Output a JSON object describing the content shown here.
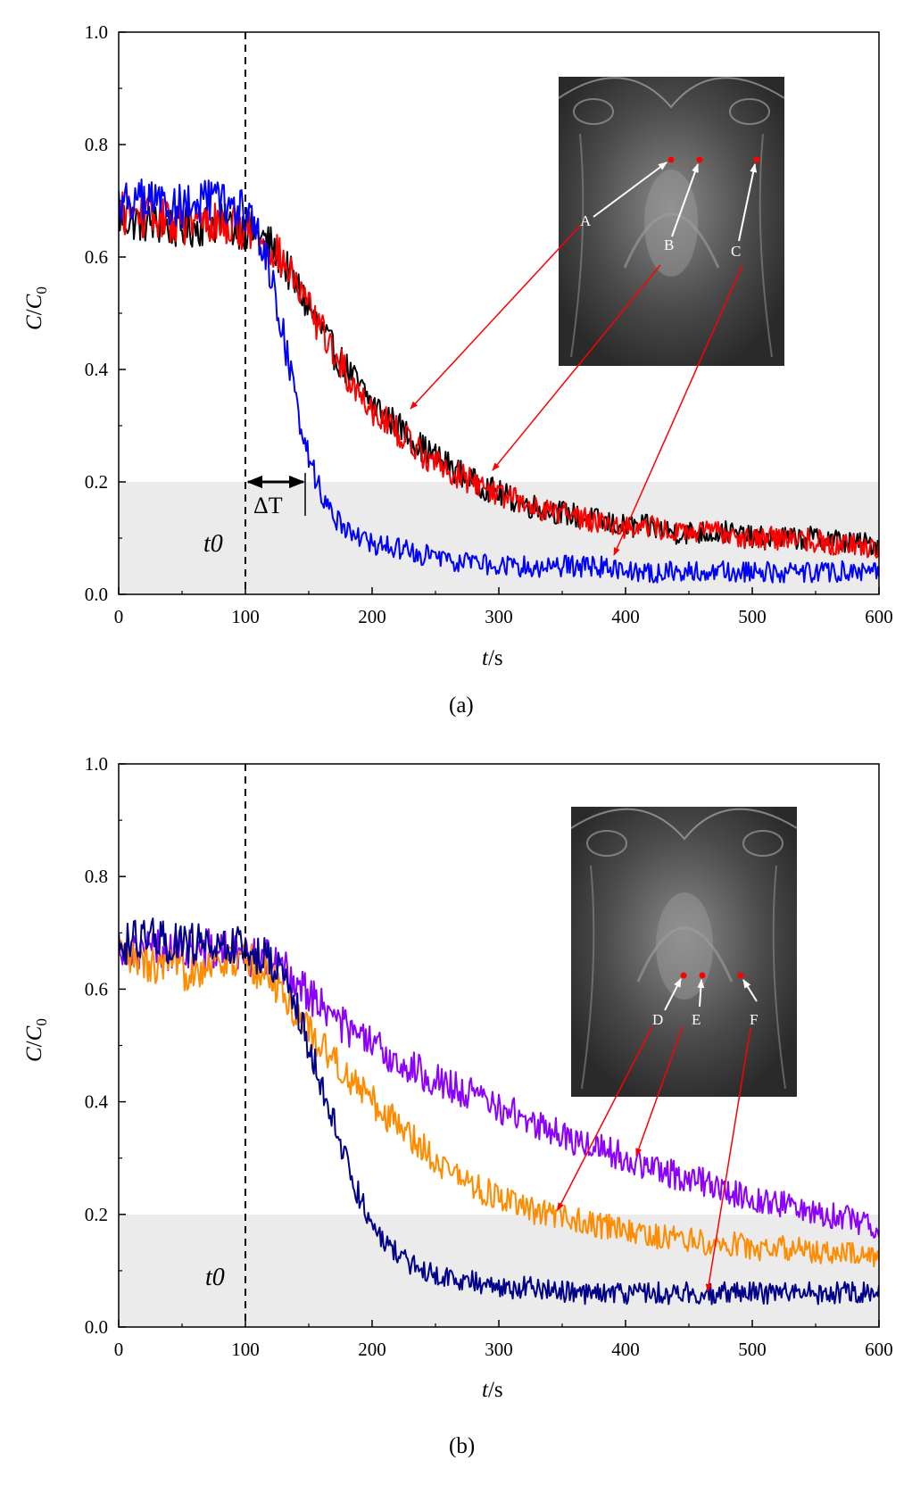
{
  "chart_data": [
    {
      "panel": "(a)",
      "type": "line",
      "xlabel": "t/s",
      "ylabel": "C/C0",
      "xlim": [
        0,
        600
      ],
      "ylim": [
        0,
        1.0
      ],
      "x_ticks": [
        "0",
        "100",
        "200",
        "300",
        "400",
        "500",
        "600"
      ],
      "y_ticks": [
        "0.0",
        "0.2",
        "0.4",
        "0.6",
        "0.8",
        "1.0"
      ],
      "shaded_band": [
        0,
        0.2
      ],
      "vline_x": 100,
      "annotations": {
        "t0": "t0",
        "delta_t": "ΔT"
      },
      "inset_labels": [
        "A",
        "B",
        "C"
      ],
      "series": [
        {
          "color": "#000000",
          "x": [
            0,
            25,
            50,
            75,
            100,
            110,
            120,
            130,
            140,
            150,
            160,
            170,
            180,
            190,
            200,
            220,
            240,
            260,
            280,
            300,
            320,
            340,
            360,
            380,
            400,
            420,
            440,
            460,
            480,
            500,
            520,
            540,
            560,
            580,
            600
          ],
          "values": [
            0.67,
            0.66,
            0.65,
            0.66,
            0.65,
            0.64,
            0.62,
            0.59,
            0.55,
            0.51,
            0.47,
            0.43,
            0.4,
            0.37,
            0.34,
            0.3,
            0.26,
            0.23,
            0.2,
            0.18,
            0.16,
            0.15,
            0.14,
            0.13,
            0.12,
            0.12,
            0.11,
            0.11,
            0.11,
            0.1,
            0.1,
            0.1,
            0.1,
            0.09,
            0.09
          ]
        },
        {
          "color": "#ff0000",
          "x": [
            0,
            25,
            50,
            75,
            100,
            110,
            120,
            130,
            140,
            150,
            160,
            170,
            180,
            190,
            200,
            220,
            240,
            260,
            280,
            300,
            320,
            340,
            360,
            380,
            400,
            420,
            440,
            460,
            480,
            500,
            520,
            540,
            560,
            580,
            600
          ],
          "values": [
            0.68,
            0.67,
            0.66,
            0.66,
            0.65,
            0.64,
            0.62,
            0.59,
            0.55,
            0.51,
            0.47,
            0.43,
            0.39,
            0.36,
            0.33,
            0.29,
            0.25,
            0.22,
            0.2,
            0.18,
            0.16,
            0.15,
            0.14,
            0.13,
            0.12,
            0.12,
            0.11,
            0.11,
            0.11,
            0.1,
            0.1,
            0.1,
            0.09,
            0.09,
            0.08
          ]
        },
        {
          "color": "#0000ff",
          "x": [
            0,
            25,
            50,
            75,
            100,
            110,
            120,
            125,
            130,
            135,
            140,
            145,
            150,
            155,
            160,
            170,
            180,
            190,
            200,
            220,
            240,
            260,
            280,
            300,
            320,
            340,
            360,
            380,
            400,
            420,
            440,
            460,
            480,
            500,
            520,
            540,
            560,
            580,
            600
          ],
          "values": [
            0.7,
            0.7,
            0.69,
            0.7,
            0.68,
            0.64,
            0.57,
            0.52,
            0.46,
            0.4,
            0.34,
            0.29,
            0.25,
            0.21,
            0.18,
            0.14,
            0.12,
            0.1,
            0.09,
            0.08,
            0.07,
            0.06,
            0.06,
            0.05,
            0.05,
            0.05,
            0.05,
            0.05,
            0.04,
            0.04,
            0.04,
            0.04,
            0.04,
            0.04,
            0.04,
            0.04,
            0.04,
            0.04,
            0.04
          ]
        }
      ]
    },
    {
      "panel": "(b)",
      "type": "line",
      "xlabel": "t/s",
      "ylabel": "C/C0",
      "xlim": [
        0,
        600
      ],
      "ylim": [
        0,
        1.0
      ],
      "x_ticks": [
        "0",
        "100",
        "200",
        "300",
        "400",
        "500",
        "600"
      ],
      "y_ticks": [
        "0.0",
        "0.2",
        "0.4",
        "0.6",
        "0.8",
        "1.0"
      ],
      "shaded_band": [
        0,
        0.2
      ],
      "vline_x": 100,
      "annotations": {
        "t0": "t0"
      },
      "inset_labels": [
        "D",
        "E",
        "F"
      ],
      "series": [
        {
          "color": "#8b00ff",
          "x": [
            0,
            25,
            50,
            75,
            100,
            120,
            140,
            160,
            180,
            200,
            220,
            240,
            260,
            280,
            300,
            320,
            340,
            360,
            380,
            400,
            420,
            440,
            460,
            480,
            500,
            520,
            540,
            560,
            580,
            600
          ],
          "values": [
            0.68,
            0.67,
            0.67,
            0.67,
            0.66,
            0.65,
            0.62,
            0.57,
            0.53,
            0.5,
            0.47,
            0.45,
            0.43,
            0.41,
            0.39,
            0.37,
            0.35,
            0.33,
            0.32,
            0.3,
            0.28,
            0.27,
            0.26,
            0.24,
            0.23,
            0.22,
            0.21,
            0.2,
            0.19,
            0.18
          ]
        },
        {
          "color": "#ff8c00",
          "x": [
            0,
            25,
            50,
            75,
            100,
            120,
            140,
            160,
            180,
            200,
            220,
            240,
            260,
            280,
            300,
            320,
            340,
            360,
            380,
            400,
            420,
            440,
            460,
            480,
            500,
            520,
            540,
            560,
            580,
            600
          ],
          "values": [
            0.66,
            0.64,
            0.63,
            0.65,
            0.65,
            0.62,
            0.56,
            0.5,
            0.45,
            0.4,
            0.36,
            0.32,
            0.28,
            0.25,
            0.23,
            0.21,
            0.2,
            0.19,
            0.18,
            0.17,
            0.16,
            0.16,
            0.15,
            0.15,
            0.14,
            0.14,
            0.14,
            0.13,
            0.13,
            0.12
          ]
        },
        {
          "color": "#00008b",
          "x": [
            0,
            25,
            50,
            75,
            100,
            120,
            130,
            140,
            150,
            160,
            170,
            180,
            190,
            200,
            210,
            220,
            240,
            260,
            280,
            300,
            320,
            340,
            360,
            380,
            400,
            420,
            440,
            460,
            480,
            500,
            520,
            540,
            560,
            580,
            600
          ],
          "values": [
            0.68,
            0.69,
            0.68,
            0.68,
            0.67,
            0.65,
            0.62,
            0.57,
            0.5,
            0.43,
            0.36,
            0.29,
            0.23,
            0.18,
            0.15,
            0.13,
            0.1,
            0.09,
            0.08,
            0.07,
            0.07,
            0.07,
            0.06,
            0.06,
            0.06,
            0.06,
            0.06,
            0.06,
            0.06,
            0.06,
            0.06,
            0.06,
            0.06,
            0.06,
            0.06
          ]
        }
      ]
    }
  ]
}
